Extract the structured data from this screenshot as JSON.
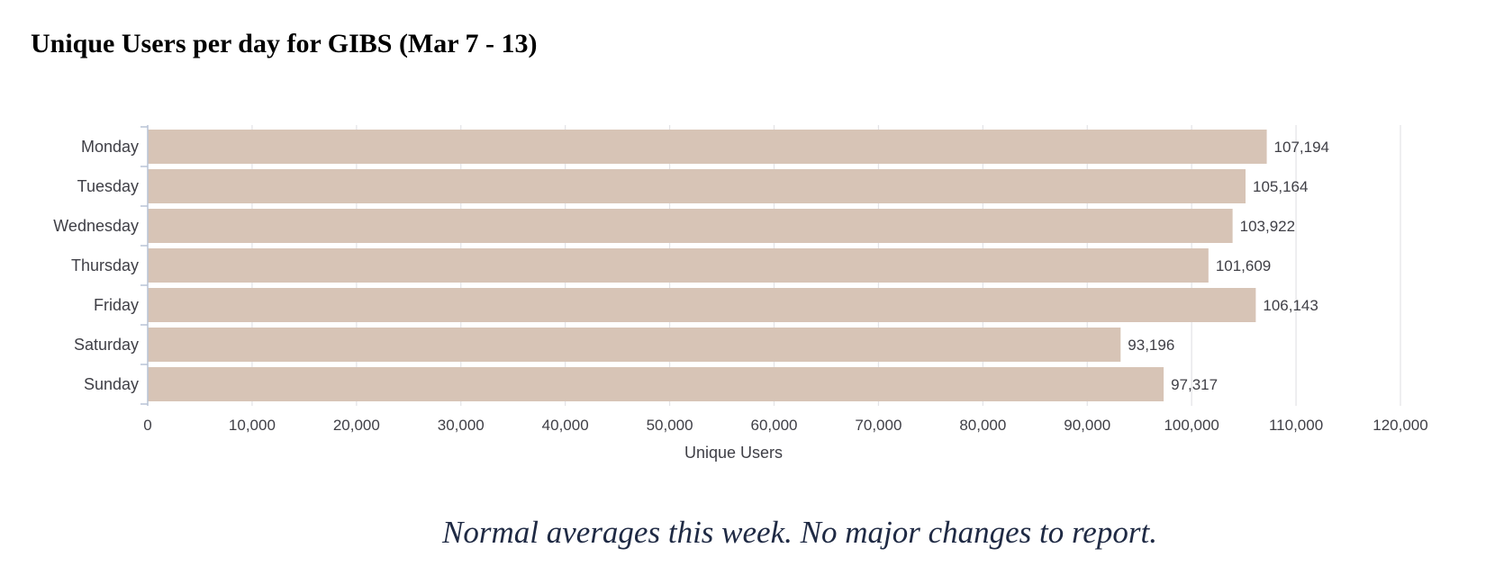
{
  "title": "Unique Users per day for GIBS (Mar 7 - 13)",
  "note": "Normal averages this week.  No major changes to report.",
  "colors": {
    "bar": "#d7c4b6",
    "grid": "#e3e3e6",
    "axis": "#b9c3d6",
    "text": "#3f3f46",
    "note": "#1f2a44"
  },
  "chart_data": {
    "type": "bar",
    "orientation": "horizontal",
    "title": "Unique Users per day for GIBS (Mar 7 - 13)",
    "categories": [
      "Monday",
      "Tuesday",
      "Wednesday",
      "Thursday",
      "Friday",
      "Saturday",
      "Sunday"
    ],
    "values": [
      107194,
      105164,
      103922,
      101609,
      106143,
      93196,
      97317
    ],
    "value_labels": [
      "107,194",
      "105,164",
      "103,922",
      "101,609",
      "106,143",
      "93,196",
      "97,317"
    ],
    "xlabel": "Unique Users",
    "ylabel": "",
    "xlim": [
      0,
      120000
    ],
    "x_ticks": [
      0,
      10000,
      20000,
      30000,
      40000,
      50000,
      60000,
      70000,
      80000,
      90000,
      100000,
      110000,
      120000
    ],
    "x_tick_labels": [
      "0",
      "10,000",
      "20,000",
      "30,000",
      "40,000",
      "50,000",
      "60,000",
      "70,000",
      "80,000",
      "90,000",
      "100,000",
      "110,000",
      "120,000"
    ],
    "grid": true,
    "legend": "none"
  }
}
